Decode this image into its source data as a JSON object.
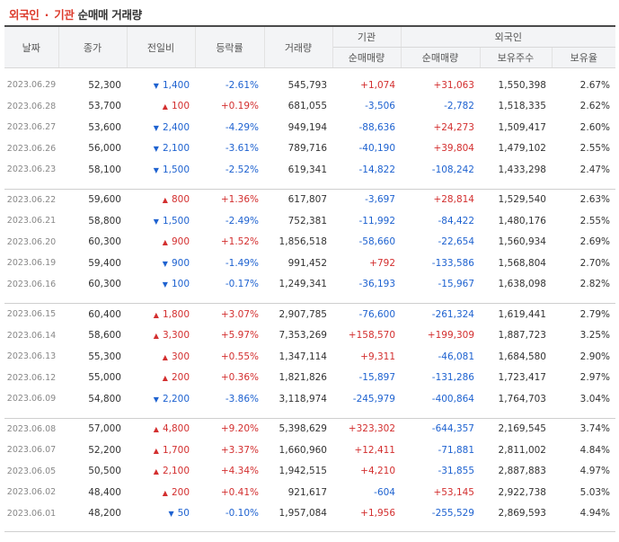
{
  "title": {
    "part1": "외국인",
    "sep": "·",
    "part2": "기관",
    "part3": "순매매 거래량"
  },
  "headers": {
    "date": "날짜",
    "close": "종가",
    "change": "전일비",
    "rate": "등락률",
    "volume": "거래량",
    "inst_group": "기관",
    "foreign_group": "외국인",
    "inst_net": "순매매량",
    "foreign_net": "순매매량",
    "foreign_hold": "보유주수",
    "foreign_ratio": "보유율"
  },
  "rows": [
    [
      "2023.06.29",
      "52,300",
      "down",
      "1,400",
      "-2.61%",
      "545,793",
      "+1,074",
      "+31,063",
      "1,550,398",
      "2.67%"
    ],
    [
      "2023.06.28",
      "53,700",
      "up",
      "100",
      "+0.19%",
      "681,055",
      "-3,506",
      "-2,782",
      "1,518,335",
      "2.62%"
    ],
    [
      "2023.06.27",
      "53,600",
      "down",
      "2,400",
      "-4.29%",
      "949,194",
      "-88,636",
      "+24,273",
      "1,509,417",
      "2.60%"
    ],
    [
      "2023.06.26",
      "56,000",
      "down",
      "2,100",
      "-3.61%",
      "789,716",
      "-40,190",
      "+39,804",
      "1,479,102",
      "2.55%"
    ],
    [
      "2023.06.23",
      "58,100",
      "down",
      "1,500",
      "-2.52%",
      "619,341",
      "-14,822",
      "-108,242",
      "1,433,298",
      "2.47%"
    ],
    [
      "2023.06.22",
      "59,600",
      "up",
      "800",
      "+1.36%",
      "617,807",
      "-3,697",
      "+28,814",
      "1,529,540",
      "2.63%"
    ],
    [
      "2023.06.21",
      "58,800",
      "down",
      "1,500",
      "-2.49%",
      "752,381",
      "-11,992",
      "-84,422",
      "1,480,176",
      "2.55%"
    ],
    [
      "2023.06.20",
      "60,300",
      "up",
      "900",
      "+1.52%",
      "1,856,518",
      "-58,660",
      "-22,654",
      "1,560,934",
      "2.69%"
    ],
    [
      "2023.06.19",
      "59,400",
      "down",
      "900",
      "-1.49%",
      "991,452",
      "+792",
      "-133,586",
      "1,568,804",
      "2.70%"
    ],
    [
      "2023.06.16",
      "60,300",
      "down",
      "100",
      "-0.17%",
      "1,249,341",
      "-36,193",
      "-15,967",
      "1,638,098",
      "2.82%"
    ],
    [
      "2023.06.15",
      "60,400",
      "up",
      "1,800",
      "+3.07%",
      "2,907,785",
      "-76,600",
      "-261,324",
      "1,619,441",
      "2.79%"
    ],
    [
      "2023.06.14",
      "58,600",
      "up",
      "3,300",
      "+5.97%",
      "7,353,269",
      "+158,570",
      "+199,309",
      "1,887,723",
      "3.25%"
    ],
    [
      "2023.06.13",
      "55,300",
      "up",
      "300",
      "+0.55%",
      "1,347,114",
      "+9,311",
      "-46,081",
      "1,684,580",
      "2.90%"
    ],
    [
      "2023.06.12",
      "55,000",
      "up",
      "200",
      "+0.36%",
      "1,821,826",
      "-15,897",
      "-131,286",
      "1,723,417",
      "2.97%"
    ],
    [
      "2023.06.09",
      "54,800",
      "down",
      "2,200",
      "-3.86%",
      "3,118,974",
      "-245,979",
      "-400,864",
      "1,764,703",
      "3.04%"
    ],
    [
      "2023.06.08",
      "57,000",
      "up",
      "4,800",
      "+9.20%",
      "5,398,629",
      "+323,302",
      "-644,357",
      "2,169,545",
      "3.74%"
    ],
    [
      "2023.06.07",
      "52,200",
      "up",
      "1,700",
      "+3.37%",
      "1,660,960",
      "+12,411",
      "-71,881",
      "2,811,002",
      "4.84%"
    ],
    [
      "2023.06.05",
      "50,500",
      "up",
      "2,100",
      "+4.34%",
      "1,942,515",
      "+4,210",
      "-31,855",
      "2,887,883",
      "4.97%"
    ],
    [
      "2023.06.02",
      "48,400",
      "up",
      "200",
      "+0.41%",
      "921,617",
      "-604",
      "+53,145",
      "2,922,738",
      "5.03%"
    ],
    [
      "2023.06.01",
      "48,200",
      "down",
      "50",
      "-0.10%",
      "1,957,084",
      "+1,956",
      "-255,529",
      "2,869,593",
      "4.94%"
    ]
  ]
}
